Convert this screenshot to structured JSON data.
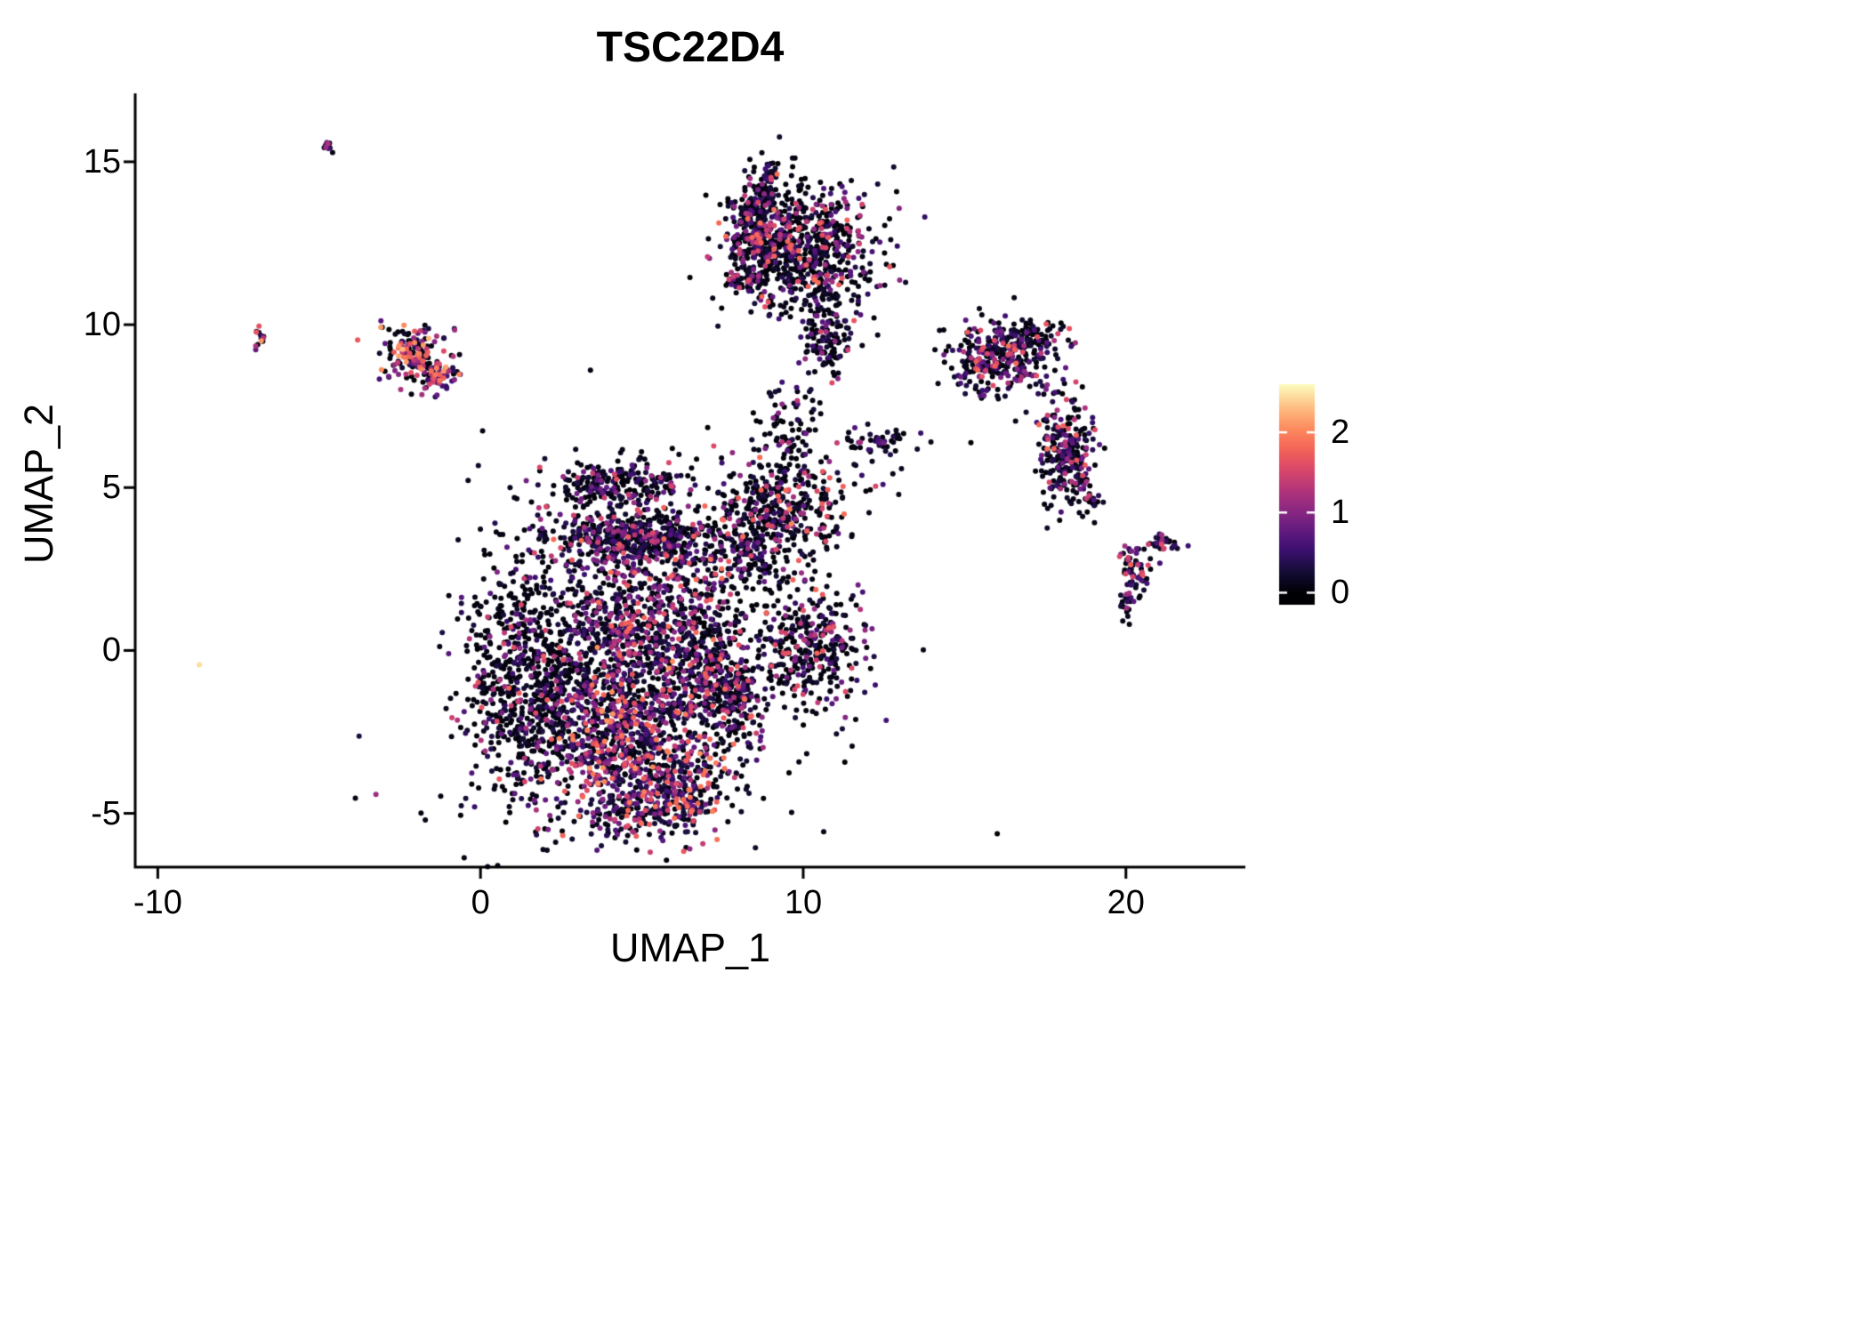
{
  "title": "TSC22D4",
  "axes": {
    "x": {
      "label": "UMAP_1",
      "tick_labels": [
        "-10",
        "0",
        "10",
        "20"
      ],
      "tick_values": [
        -10,
        0,
        10,
        20
      ]
    },
    "y": {
      "label": "UMAP_2",
      "tick_labels": [
        "-5",
        "0",
        "5",
        "10",
        "15"
      ],
      "tick_values": [
        -5,
        0,
        5,
        10,
        15
      ]
    }
  },
  "colorbar": {
    "tick_labels": [
      "0",
      "1",
      "2"
    ],
    "tick_values": [
      0,
      1,
      2
    ],
    "limits": [
      0,
      2.6
    ],
    "colormap": "magma",
    "colors": {
      "low": "#000004",
      "mid": "#B63679",
      "high": "#FCFDBF"
    },
    "position": "right"
  },
  "chart_data": {
    "type": "scatter",
    "title": "TSC22D4",
    "xlabel": "UMAP_1",
    "ylabel": "UMAP_2",
    "xlim": [
      -10.7,
      23.7
    ],
    "ylim": [
      -6.65,
      17.1
    ],
    "grid": false,
    "legend_position": "right",
    "point_value_range": [
      0,
      2.6
    ],
    "seed": 20240601,
    "clusters": [
      {
        "name": "central-left-mass",
        "n": 800,
        "cx": 1.6,
        "cy": -1.0,
        "sx": 1.05,
        "sy": 1.9,
        "p_zero": 0.72,
        "vmax": 1.8
      },
      {
        "name": "central-core",
        "n": 500,
        "cx": 4.6,
        "cy": 0.8,
        "sx": 1.15,
        "sy": 1.15,
        "p_zero": 0.45,
        "vmax": 1.9
      },
      {
        "name": "central-lower-core",
        "n": 900,
        "cx": 4.7,
        "cy": -2.5,
        "sx": 1.5,
        "sy": 1.25,
        "p_zero": 0.33,
        "vmax": 2.1
      },
      {
        "name": "central-bottom",
        "n": 350,
        "cx": 5.3,
        "cy": -4.5,
        "sx": 1.15,
        "sy": 0.7,
        "p_zero": 0.38,
        "vmax": 2.0
      },
      {
        "name": "central-band",
        "n": 550,
        "cx": 4.8,
        "cy": 3.4,
        "sx": 1.5,
        "sy": 0.42,
        "p_zero": 0.5,
        "vmax": 1.9
      },
      {
        "name": "central-upper-arc",
        "n": 250,
        "cx": 4.2,
        "cy": 5.1,
        "sx": 1.25,
        "sy": 0.42,
        "p_zero": 0.6,
        "vmax": 1.6
      },
      {
        "name": "central-right-side",
        "n": 450,
        "cx": 6.9,
        "cy": 0.2,
        "sx": 0.8,
        "sy": 1.7,
        "p_zero": 0.45,
        "vmax": 1.9
      },
      {
        "name": "central-right-protrusion",
        "n": 150,
        "cx": 7.9,
        "cy": -1.4,
        "sx": 0.5,
        "sy": 0.8,
        "p_zero": 0.5,
        "vmax": 1.8
      },
      {
        "name": "right-lower-blob",
        "n": 350,
        "cx": 10.3,
        "cy": 0.2,
        "sx": 0.85,
        "sy": 0.95,
        "p_zero": 0.6,
        "vmax": 1.8
      },
      {
        "name": "right-mid-blob",
        "n": 400,
        "cx": 9.4,
        "cy": 4.3,
        "sx": 1.05,
        "sy": 0.85,
        "p_zero": 0.62,
        "vmax": 2.0
      },
      {
        "name": "bridge-blob",
        "n": 80,
        "cx": 8.4,
        "cy": 2.9,
        "sx": 0.45,
        "sy": 0.45,
        "p_zero": 0.55,
        "vmax": 1.6
      },
      {
        "name": "trail-up",
        "n": 90,
        "cx": 9.6,
        "cy": 6.9,
        "sx": 0.55,
        "sy": 0.8,
        "p_zero": 0.6,
        "vmax": 1.5
      },
      {
        "name": "sparse-halo",
        "n": 220,
        "cx": 5.5,
        "cy": 0.3,
        "sx": 3.2,
        "sy": 3.2,
        "p_zero": 0.75,
        "vmax": 1.5
      },
      {
        "name": "top-main",
        "n": 700,
        "cx": 10.0,
        "cy": 12.4,
        "sx": 1.1,
        "sy": 1.0,
        "p_zero": 0.6,
        "vmax": 1.9
      },
      {
        "name": "top-left-edge",
        "n": 250,
        "cx": 8.5,
        "cy": 12.9,
        "sx": 0.35,
        "sy": 0.85,
        "p_zero": 0.5,
        "vmax": 1.9
      },
      {
        "name": "top-left-arm",
        "n": 60,
        "cx": 8.2,
        "cy": 11.35,
        "sx": 0.35,
        "sy": 0.15,
        "p_zero": 0.45,
        "vmax": 1.8
      },
      {
        "name": "top-upper-dash",
        "n": 40,
        "cx": 8.95,
        "cy": 14.35,
        "sx": 0.1,
        "sy": 0.3,
        "p_zero": 0.5,
        "vmax": 1.6
      },
      {
        "name": "top-tail",
        "n": 140,
        "cx": 10.75,
        "cy": 9.8,
        "sx": 0.4,
        "sy": 0.75,
        "p_zero": 0.5,
        "vmax": 1.8
      },
      {
        "name": "upper-right-main",
        "n": 260,
        "cx": 15.9,
        "cy": 9.0,
        "sx": 0.7,
        "sy": 0.5,
        "p_zero": 0.55,
        "vmax": 1.9
      },
      {
        "name": "upper-right-arm",
        "n": 90,
        "cx": 17.3,
        "cy": 9.55,
        "sx": 0.65,
        "sy": 0.28,
        "p_zero": 0.55,
        "vmax": 1.7
      },
      {
        "name": "upper-right-strays",
        "n": 15,
        "cx": 15.5,
        "cy": 7.9,
        "sx": 0.35,
        "sy": 0.25,
        "p_zero": 0.6,
        "vmax": 1.2
      },
      {
        "name": "right-cluster",
        "n": 260,
        "cx": 18.2,
        "cy": 6.0,
        "sx": 0.42,
        "sy": 0.85,
        "p_zero": 0.5,
        "vmax": 1.9
      },
      {
        "name": "right-cluster-dot",
        "n": 15,
        "cx": 19.0,
        "cy": 4.65,
        "sx": 0.15,
        "sy": 0.12,
        "p_zero": 0.5,
        "vmax": 1.5
      },
      {
        "name": "right-trail",
        "n": 20,
        "cx": 17.5,
        "cy": 7.8,
        "sx": 0.4,
        "sy": 0.6,
        "p_zero": 0.65,
        "vmax": 1.3
      },
      {
        "name": "far-right-main",
        "n": 60,
        "cx": 20.3,
        "cy": 2.5,
        "sx": 0.28,
        "sy": 0.4,
        "p_zero": 0.5,
        "vmax": 1.8
      },
      {
        "name": "far-right-lower",
        "n": 20,
        "cx": 20.05,
        "cy": 1.3,
        "sx": 0.12,
        "sy": 0.25,
        "p_zero": 0.5,
        "vmax": 1.5
      },
      {
        "name": "far-right-dash",
        "n": 30,
        "cx": 21.1,
        "cy": 3.3,
        "sx": 0.3,
        "sy": 0.12,
        "p_zero": 0.35,
        "vmax": 1.6
      },
      {
        "name": "mid-small-cluster",
        "n": 30,
        "cx": 12.5,
        "cy": 6.5,
        "sx": 0.45,
        "sy": 0.18,
        "p_zero": 0.6,
        "vmax": 1.4
      },
      {
        "name": "mid-small-strays",
        "n": 8,
        "cx": 11.6,
        "cy": 6.4,
        "sx": 0.3,
        "sy": 0.15,
        "p_zero": 0.6,
        "vmax": 1.2
      },
      {
        "name": "bridge-right-strays",
        "n": 18,
        "cx": 12.6,
        "cy": 6.1,
        "sx": 0.9,
        "sy": 0.5,
        "p_zero": 0.7,
        "vmax": 1.2
      },
      {
        "name": "left-cluster-main",
        "n": 160,
        "cx": -2.0,
        "cy": 9.1,
        "sx": 0.55,
        "sy": 0.45,
        "p_zero": 0.35,
        "vmax": 2.3,
        "pow": 1.3
      },
      {
        "name": "left-cluster-tail",
        "n": 60,
        "cx": -1.25,
        "cy": 8.35,
        "sx": 0.3,
        "sy": 0.28,
        "p_zero": 0.3,
        "vmax": 2.2,
        "pow": 1.3
      },
      {
        "name": "tiny-left-pair",
        "n": 14,
        "cx": -6.85,
        "cy": 9.65,
        "sx": 0.12,
        "sy": 0.15,
        "p_zero": 0.3,
        "vmax": 2.2,
        "pow": 1.3
      },
      {
        "name": "tiny-top-dash",
        "n": 12,
        "cx": -4.72,
        "cy": 15.45,
        "sx": 0.15,
        "sy": 0.1,
        "p_zero": 0.4,
        "vmax": 1.8
      },
      {
        "name": "single-left-point",
        "n": 1,
        "cx": -8.7,
        "cy": -0.45,
        "sx": 0.02,
        "sy": 0.02,
        "p_zero": 0,
        "vmax": 2.5,
        "v_fixed": 2.45
      }
    ]
  }
}
